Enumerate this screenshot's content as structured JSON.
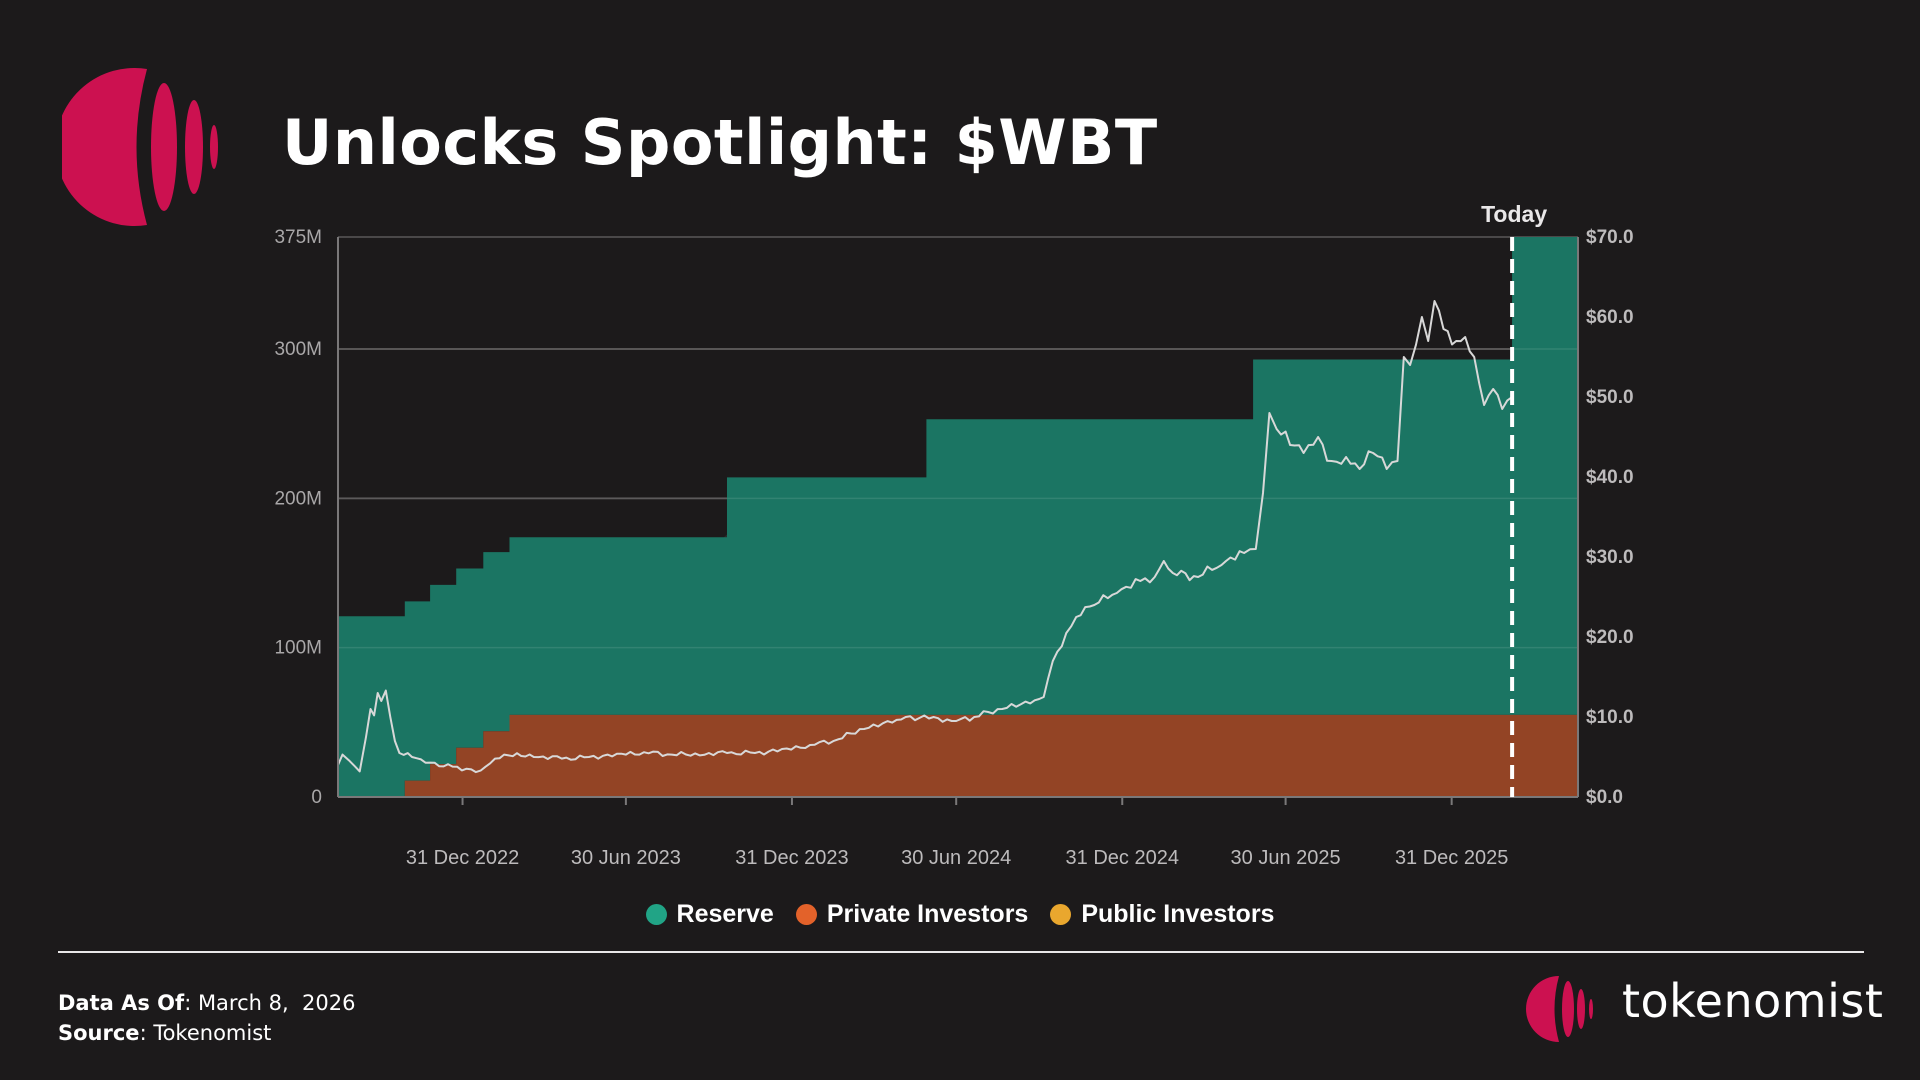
{
  "header": {
    "title": "Unlocks Spotlight: $WBT"
  },
  "colors": {
    "background": "#1c1a1b",
    "brand_magenta": "#cc1150",
    "reserve": "#1b7563",
    "private_investors": "#934425",
    "public_investors": "#e9a72e",
    "price_line": "#d8d8d8"
  },
  "chart_data": {
    "type": "area",
    "title": "",
    "watermark": "tokenomist",
    "today_label": "Today",
    "today_date": "2026-03-08",
    "x_ticks": [
      "31 Dec 2022",
      "30 Jun 2023",
      "31 Dec 2023",
      "30 Jun 2024",
      "31 Dec 2024",
      "30 Jun 2025",
      "31 Dec 2025"
    ],
    "x_tick_dates": [
      "2022-12-31",
      "2023-06-30",
      "2023-12-31",
      "2024-06-30",
      "2024-12-31",
      "2025-06-30",
      "2025-12-31"
    ],
    "xlim": [
      "2022-08-15",
      "2026-05-20"
    ],
    "y_left": {
      "ticks": [
        "0",
        "100M",
        "200M",
        "300M",
        "375M"
      ],
      "tick_values": [
        0,
        100,
        200,
        300,
        375
      ],
      "ylim": [
        0,
        375
      ],
      "unit": "M tokens"
    },
    "y_right": {
      "ticks": [
        "$0.0",
        "$10.0",
        "$20.0",
        "$30.0",
        "$40.0",
        "$50.0",
        "$60.0",
        "$70.0"
      ],
      "tick_values": [
        0,
        10,
        20,
        30,
        40,
        50,
        60,
        70
      ],
      "ylim": [
        0,
        70
      ]
    },
    "grid": true,
    "legend_position": "bottom",
    "legend": [
      {
        "name": "Reserve",
        "color": "#21a486"
      },
      {
        "name": "Private Investors",
        "color": "#e3622a"
      },
      {
        "name": "Public Investors",
        "color": "#e9a72e"
      }
    ],
    "series": [
      {
        "name": "Private Investors",
        "kind": "stacked-area-step",
        "points": [
          [
            "2022-08-15",
            0
          ],
          [
            "2022-10-28",
            0
          ],
          [
            "2022-10-28",
            11
          ],
          [
            "2022-11-25",
            11
          ],
          [
            "2022-11-25",
            22
          ],
          [
            "2022-12-24",
            22
          ],
          [
            "2022-12-24",
            33
          ],
          [
            "2023-01-23",
            33
          ],
          [
            "2023-01-23",
            44
          ],
          [
            "2023-02-21",
            44
          ],
          [
            "2023-02-21",
            55
          ],
          [
            "2026-05-20",
            55
          ]
        ]
      },
      {
        "name": "Reserve",
        "kind": "stacked-area-step-total",
        "points": [
          [
            "2022-08-15",
            121
          ],
          [
            "2022-10-28",
            121
          ],
          [
            "2022-10-28",
            131
          ],
          [
            "2022-11-25",
            131
          ],
          [
            "2022-11-25",
            142
          ],
          [
            "2022-12-24",
            142
          ],
          [
            "2022-12-24",
            153
          ],
          [
            "2023-01-23",
            153
          ],
          [
            "2023-01-23",
            164
          ],
          [
            "2023-02-21",
            164
          ],
          [
            "2023-02-21",
            174
          ],
          [
            "2023-10-20",
            174
          ],
          [
            "2023-10-20",
            214
          ],
          [
            "2024-05-28",
            214
          ],
          [
            "2024-05-28",
            253
          ],
          [
            "2025-05-25",
            253
          ],
          [
            "2025-05-25",
            293
          ],
          [
            "2026-03-08",
            293
          ],
          [
            "2026-03-08",
            375
          ],
          [
            "2026-05-20",
            375
          ]
        ]
      },
      {
        "name": "Price",
        "kind": "line",
        "axis": "right",
        "points": [
          [
            "2022-08-15",
            4.0
          ],
          [
            "2022-08-20",
            5.3
          ],
          [
            "2022-08-27",
            4.6
          ],
          [
            "2022-09-03",
            3.8
          ],
          [
            "2022-09-08",
            3.2
          ],
          [
            "2022-09-15",
            7.5
          ],
          [
            "2022-09-20",
            11.0
          ],
          [
            "2022-09-24",
            10.2
          ],
          [
            "2022-09-28",
            13.0
          ],
          [
            "2022-10-02",
            12.0
          ],
          [
            "2022-10-07",
            13.3
          ],
          [
            "2022-10-12",
            10.0
          ],
          [
            "2022-10-17",
            7.0
          ],
          [
            "2022-10-22",
            5.5
          ],
          [
            "2022-11-05",
            5.0
          ],
          [
            "2022-11-25",
            4.3
          ],
          [
            "2022-12-20",
            3.8
          ],
          [
            "2023-01-20",
            3.3
          ],
          [
            "2023-02-05",
            4.8
          ],
          [
            "2023-02-20",
            5.2
          ],
          [
            "2023-03-20",
            5.0
          ],
          [
            "2023-04-20",
            4.8
          ],
          [
            "2023-05-20",
            5.0
          ],
          [
            "2023-06-20",
            5.4
          ],
          [
            "2023-07-20",
            5.6
          ],
          [
            "2023-08-20",
            5.3
          ],
          [
            "2023-09-20",
            5.2
          ],
          [
            "2023-10-20",
            5.5
          ],
          [
            "2023-11-20",
            5.5
          ],
          [
            "2023-12-20",
            6.0
          ],
          [
            "2024-01-20",
            6.5
          ],
          [
            "2024-02-20",
            7.2
          ],
          [
            "2024-03-20",
            8.5
          ],
          [
            "2024-04-20",
            9.3
          ],
          [
            "2024-05-05",
            10.0
          ],
          [
            "2024-06-05",
            10.0
          ],
          [
            "2024-06-25",
            9.5
          ],
          [
            "2024-07-20",
            10.0
          ],
          [
            "2024-08-20",
            11.0
          ],
          [
            "2024-09-20",
            11.7
          ],
          [
            "2024-10-05",
            12.5
          ],
          [
            "2024-10-15",
            17.0
          ],
          [
            "2024-10-30",
            20.5
          ],
          [
            "2024-11-10",
            22.5
          ],
          [
            "2024-11-30",
            24.0
          ],
          [
            "2024-12-25",
            25.5
          ],
          [
            "2025-01-20",
            27.0
          ],
          [
            "2025-02-05",
            27.5
          ],
          [
            "2025-02-15",
            29.5
          ],
          [
            "2025-02-25",
            28.0
          ],
          [
            "2025-03-25",
            27.5
          ],
          [
            "2025-04-20",
            29.0
          ],
          [
            "2025-05-15",
            30.5
          ],
          [
            "2025-05-28",
            31.0
          ],
          [
            "2025-06-05",
            38.0
          ],
          [
            "2025-06-12",
            48.0
          ],
          [
            "2025-06-20",
            46.0
          ],
          [
            "2025-07-05",
            44.0
          ],
          [
            "2025-07-20",
            43.0
          ],
          [
            "2025-08-05",
            45.0
          ],
          [
            "2025-08-20",
            42.0
          ],
          [
            "2025-09-05",
            42.5
          ],
          [
            "2025-09-20",
            41.0
          ],
          [
            "2025-10-05",
            43.0
          ],
          [
            "2025-10-20",
            41.0
          ],
          [
            "2025-11-01",
            42.0
          ],
          [
            "2025-11-08",
            55.0
          ],
          [
            "2025-11-15",
            54.0
          ],
          [
            "2025-11-28",
            60.0
          ],
          [
            "2025-12-05",
            57.0
          ],
          [
            "2025-12-12",
            62.0
          ],
          [
            "2025-12-22",
            58.5
          ],
          [
            "2026-01-05",
            57.0
          ],
          [
            "2026-01-15",
            57.5
          ],
          [
            "2026-01-25",
            55.0
          ],
          [
            "2026-02-05",
            49.0
          ],
          [
            "2026-02-15",
            51.0
          ],
          [
            "2026-02-25",
            48.5
          ],
          [
            "2026-03-08",
            50.0
          ]
        ]
      }
    ]
  },
  "footer": {
    "data_as_of_label": "Data As Of",
    "data_as_of_value": ": March 8,  2026",
    "source_label": "Source",
    "source_value": ": Tokenomist"
  },
  "brand": {
    "name": "tokenomist",
    "logo_icon": "tokenomist-logo-icon"
  }
}
